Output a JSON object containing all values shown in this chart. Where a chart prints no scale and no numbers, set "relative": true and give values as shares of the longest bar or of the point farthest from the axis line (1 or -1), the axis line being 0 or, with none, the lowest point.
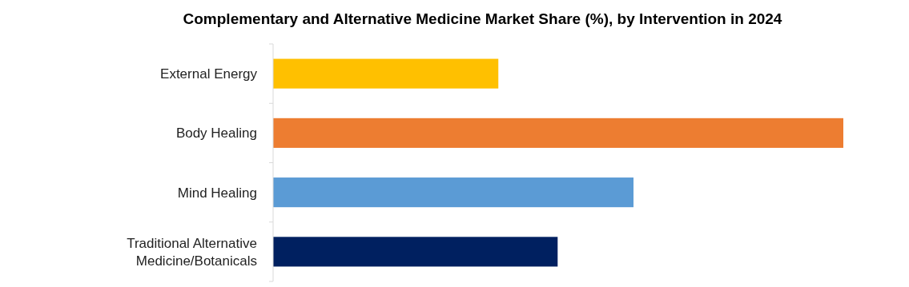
{
  "chart_data": {
    "type": "bar",
    "orientation": "horizontal",
    "relative": true,
    "title": "Complementary and Alternative Medicine Market Share (%), by Intervention in 2024",
    "categories": [
      "External Energy",
      "Body Healing",
      "Mind Healing",
      "Traditional Alternative Medicine/Botanicals"
    ],
    "values": [
      0.395,
      1,
      0.632,
      0.499
    ],
    "colors": [
      "#ffc000",
      "#ed7d31",
      "#5b9bd5",
      "#002060"
    ]
  }
}
